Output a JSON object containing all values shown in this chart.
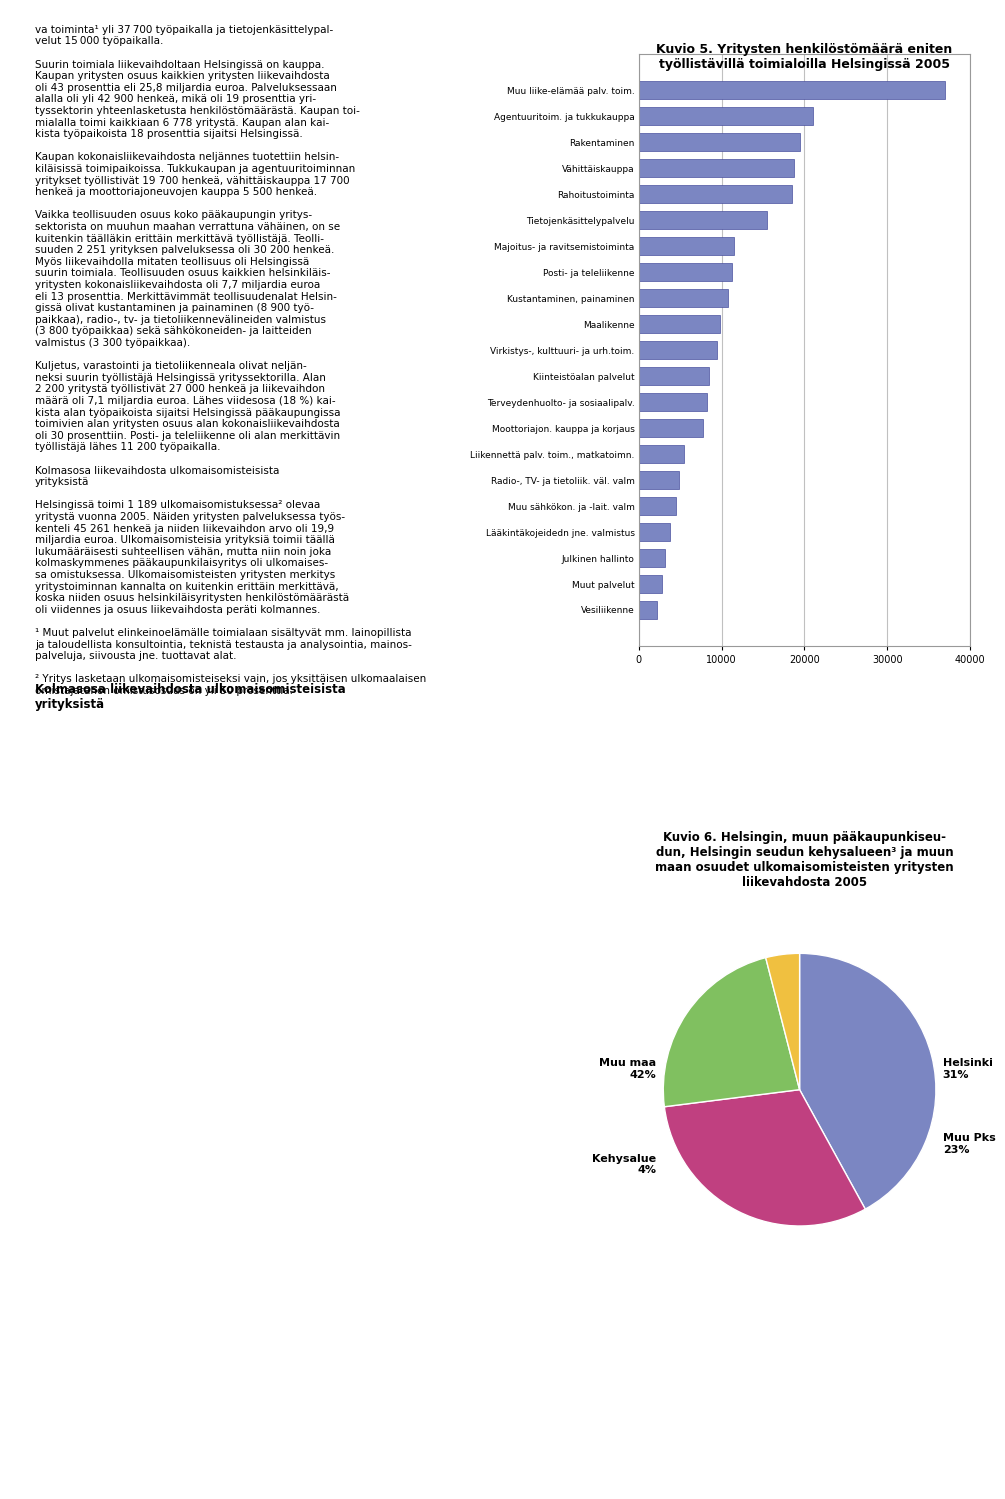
{
  "title5": "Kuvio 5. Yritysten henkilöstömäärä eniten\ntyöllistävillä toimialoilla Helsingissä 2005",
  "bar_labels": [
    "Muu liike-elämää palv. toim.",
    "Agentuuritoim. ja tukkukauppa",
    "Rakentaminen",
    "Vähittäiskauppa",
    "Rahoitustoiminta",
    "Tietojenkäsittelypalvelu",
    "Majoitus- ja ravitsemistoiminta",
    "Posti- ja teleliikenne",
    "Kustantaminen, painaminen",
    "Maalikenne",
    "Virkistys-, kulttuuri- ja urh.toim.",
    "Kiinteistöalan palvelut",
    "Terveydenhuolto- ja sosiaalipalv.",
    "Moottoriajon. kauppa ja korjaus",
    "Liikennettä palv. toim., matkatoimn.",
    "Radio-, TV- ja tietoliik. väl. valm",
    "Muu sähkökon. ja -lait. valm",
    "Lääkintäkojeidedn jne. valmistus",
    "Julkinen hallinto",
    "Muut palvelut",
    "Vesiliikenne"
  ],
  "bar_values": [
    37000,
    21000,
    19500,
    18800,
    18500,
    15500,
    11500,
    11200,
    10800,
    9800,
    9500,
    8500,
    8200,
    7800,
    5500,
    4800,
    4500,
    3800,
    3200,
    2800,
    2200
  ],
  "bar_color": "#7b86c2",
  "bar_edge_color": "#4a519e",
  "xlim": [
    0,
    40000
  ],
  "xticks": [
    0,
    10000,
    20000,
    30000,
    40000
  ],
  "title6": "Kuvio 6. Helsingin, muun pääkaupunkiseu-\ndun, Helsingin seudun kehysalueen³ ja muun\nmaan osuudet ulkomaisomisteisten yritysten\nliikevahdosta 2005",
  "pie_labels": [
    "Muu maa\n42%",
    "Helsinki\n31%",
    "Muu Pks\n23%",
    "Kehysalue\n4%"
  ],
  "pie_values": [
    42,
    31,
    23,
    4
  ],
  "pie_colors": [
    "#7b86c2",
    "#c04080",
    "#80c060",
    "#f0c040"
  ],
  "pie_startangle": 90,
  "background_color": "#ffffff",
  "text_color": "#000000",
  "grid_color": "#c0c0c0"
}
